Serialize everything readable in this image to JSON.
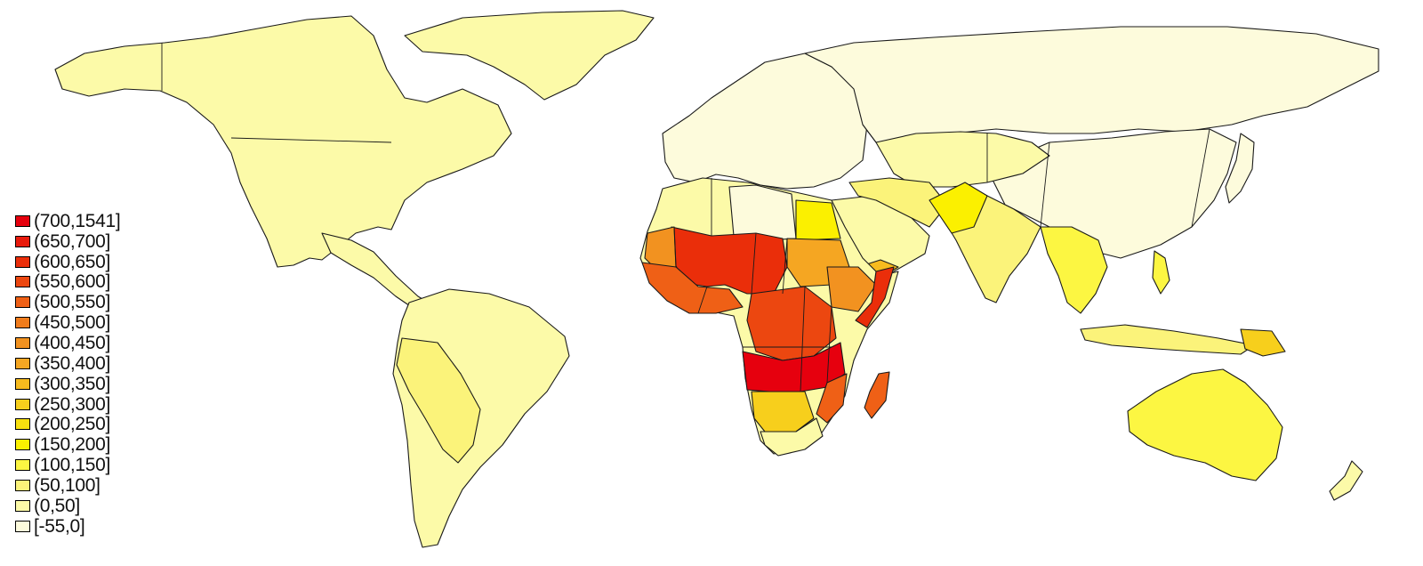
{
  "legend": {
    "items": [
      {
        "label": "(700,1541]",
        "color": "#e6000e"
      },
      {
        "label": "(650,700]",
        "color": "#e81a0c"
      },
      {
        "label": "(600,650]",
        "color": "#ea2e0a"
      },
      {
        "label": "(550,600]",
        "color": "#ec4710"
      },
      {
        "label": "(500,550]",
        "color": "#ef6016"
      },
      {
        "label": "(450,500]",
        "color": "#f07c1c"
      },
      {
        "label": "(400,450]",
        "color": "#f29220"
      },
      {
        "label": "(350,400]",
        "color": "#f5a622"
      },
      {
        "label": "(300,350]",
        "color": "#f7bb1e"
      },
      {
        "label": "(250,300]",
        "color": "#f7cf1c"
      },
      {
        "label": "(200,250]",
        "color": "#f8e00f"
      },
      {
        "label": "(150,200]",
        "color": "#fbf000"
      },
      {
        "label": "(100,150]",
        "color": "#fcf642"
      },
      {
        "label": "(50,100]",
        "color": "#fbf37a"
      },
      {
        "label": "(0,50]",
        "color": "#fcfaa8"
      },
      {
        "label": "[-55,0]",
        "color": "#fdfbdc"
      }
    ]
  }
}
